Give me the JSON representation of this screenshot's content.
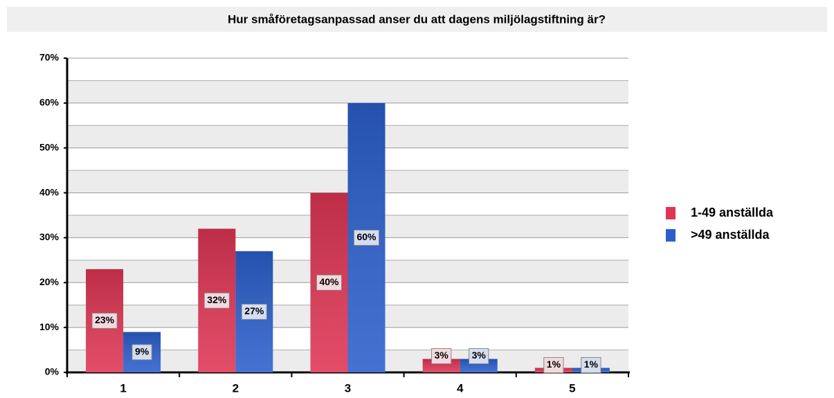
{
  "chart_data": {
    "type": "bar",
    "title": "Hur småföretagsanpassad anser du att dagens miljölagstiftning är?",
    "categories": [
      "1",
      "2",
      "3",
      "4",
      "5"
    ],
    "series": [
      {
        "name": "1-49 anställda",
        "color": "#de3553",
        "values": [
          23,
          32,
          40,
          3,
          1
        ],
        "value_labels": [
          "23%",
          "32%",
          "40%",
          "3%",
          "1%"
        ]
      },
      {
        "name": ">49 anställda",
        "color": "#2c5fcc",
        "values": [
          9,
          27,
          60,
          3,
          1
        ],
        "value_labels": [
          "9%",
          "27%",
          "60%",
          "3%",
          "1%"
        ]
      }
    ],
    "ylim": [
      0,
      70
    ],
    "yticks": [
      {
        "value": 0,
        "label": "0%"
      },
      {
        "value": 10,
        "label": "10%"
      },
      {
        "value": 20,
        "label": "20%"
      },
      {
        "value": 30,
        "label": "30%"
      },
      {
        "value": 40,
        "label": "40%"
      },
      {
        "value": 50,
        "label": "50%"
      },
      {
        "value": 60,
        "label": "60%"
      },
      {
        "value": 70,
        "label": "70%"
      }
    ],
    "grid": true,
    "legend": "right"
  }
}
